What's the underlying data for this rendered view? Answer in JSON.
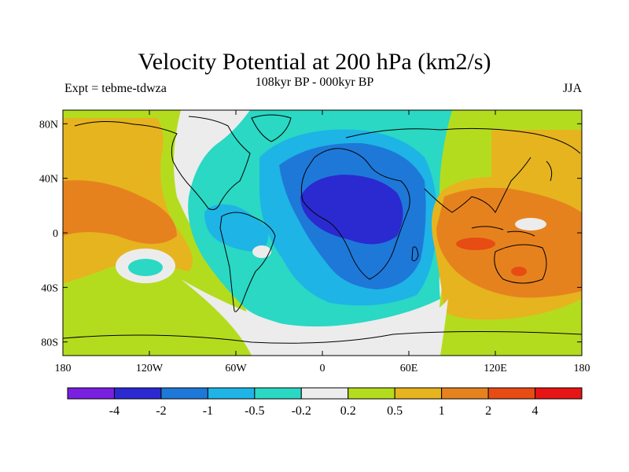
{
  "chart_data": {
    "type": "heatmap",
    "title": "Velocity Potential at 200 hPa (km2/s)",
    "subtitle": "108kyr BP - 000kyr BP",
    "left_label": "Expt = tebme-tdwza",
    "right_label": "JJA",
    "projection": "cylindrical-equidistant",
    "xlim": [
      -180,
      180
    ],
    "ylim": [
      -90,
      90
    ],
    "x_ticks": [
      {
        "value": -180,
        "label": "180"
      },
      {
        "value": -120,
        "label": "120W"
      },
      {
        "value": -60,
        "label": "60W"
      },
      {
        "value": 0,
        "label": "0"
      },
      {
        "value": 60,
        "label": "60E"
      },
      {
        "value": 120,
        "label": "120E"
      },
      {
        "value": 180,
        "label": "180"
      }
    ],
    "y_ticks": [
      {
        "value": 80,
        "label": "80N"
      },
      {
        "value": 40,
        "label": "40N"
      },
      {
        "value": 0,
        "label": "0"
      },
      {
        "value": -40,
        "label": "40S"
      },
      {
        "value": -80,
        "label": "80S"
      }
    ],
    "contour_levels": [
      "-4",
      "-2",
      "-1",
      "-0.5",
      "-0.2",
      "0.2",
      "0.5",
      "1",
      "2",
      "4"
    ],
    "colorbar_colors": [
      "#7a1fe0",
      "#2a2ad0",
      "#1e78d8",
      "#1eb4e6",
      "#2ad8c4",
      "#ececec",
      "#b4dc1e",
      "#e6b41e",
      "#e6821e",
      "#e64c14",
      "#e61414"
    ],
    "fields": {
      "positive_tropical_pacific": {
        "approx_value": "1 to 2",
        "region": "180-110W, 20S-40N"
      },
      "negative_african_center": {
        "approx_value": "-2 to -4",
        "region": "10W-50E, 5N-35N"
      },
      "positive_maritime_continent": {
        "approx_value": "2 to 4",
        "region": "100E-140E, 10S-35N"
      },
      "near_zero_south_atlantic": {
        "approx_value": "-0.2 to 0.2",
        "region": "60W-20E, 40S-80S"
      }
    },
    "grid": false,
    "legend_placement": "bottom"
  }
}
